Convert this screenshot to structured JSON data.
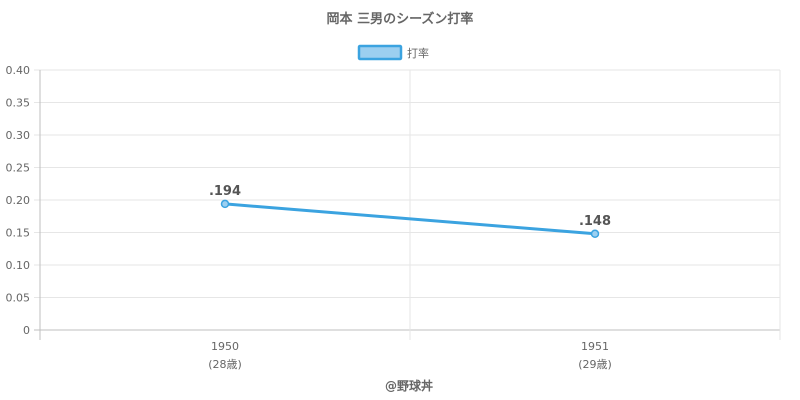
{
  "chart_data": {
    "type": "line",
    "title": "岡本 三男のシーズン打率",
    "categories": [
      {
        "year": "1950",
        "age": "(28歳)"
      },
      {
        "year": "1951",
        "age": "(29歳)"
      }
    ],
    "series": [
      {
        "name": "打率",
        "values": [
          0.194,
          0.148
        ],
        "labels": [
          ".194",
          ".148"
        ],
        "color": "#3ba3e0",
        "fill": "#9ccff0"
      }
    ],
    "ylim": [
      0,
      0.4
    ],
    "yticks": [
      "0",
      "0.05",
      "0.10",
      "0.15",
      "0.20",
      "0.25",
      "0.30",
      "0.35",
      "0.40"
    ],
    "ytick_values": [
      0,
      0.05,
      0.1,
      0.15,
      0.2,
      0.25,
      0.3,
      0.35,
      0.4
    ],
    "grid": true,
    "legend": "top-center"
  },
  "credit": "@野球丼"
}
